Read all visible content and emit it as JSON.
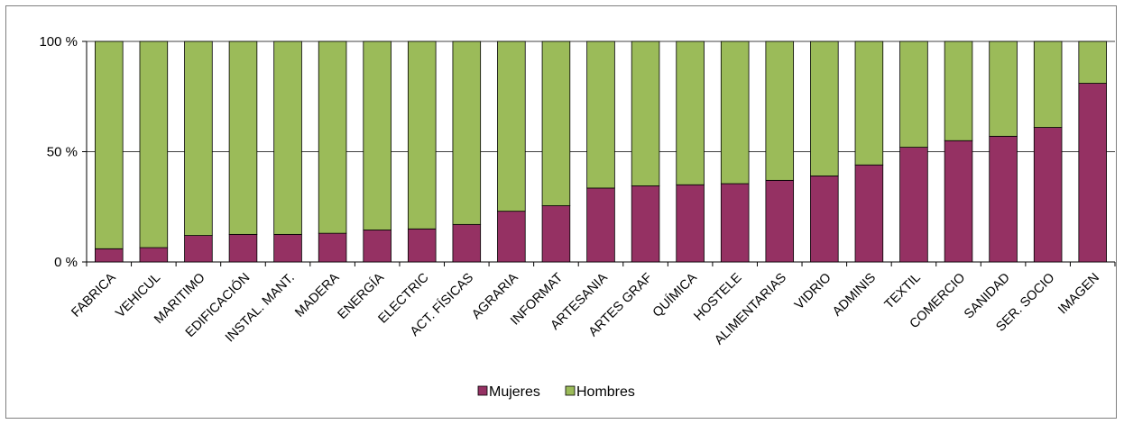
{
  "chart_data": {
    "type": "bar",
    "stacked": "percent",
    "categories": [
      "FABRICA",
      "VEHICUL",
      "MARITIMO",
      "EDIFICACIÓN",
      "INSTAL. MANT.",
      "MADERA",
      "ENERGÍA",
      "ELECTRIC",
      "ACT. FÍSICAS",
      "AGRARIA",
      "INFORMAT",
      "ARTESANIA",
      "ARTES GRAF",
      "QUÍMICA",
      "HOSTELE",
      "ALIMENTARIAS",
      "VIDRIO",
      "ADMINIS",
      "TEXTIL",
      "COMERCIO",
      "SANIDAD",
      "SER. SOCIO",
      "IMAGEN"
    ],
    "series": [
      {
        "name": "Mujeres",
        "color": "#953163",
        "values": [
          6,
          6.5,
          12,
          12.5,
          12.5,
          13,
          14.5,
          15,
          17,
          23,
          25.5,
          33.5,
          34.5,
          35,
          35.5,
          37,
          39,
          44,
          52,
          55,
          57,
          61,
          81
        ]
      },
      {
        "name": "Hombres",
        "color": "#9BBB59",
        "values": [
          94,
          93.5,
          88,
          87.5,
          87.5,
          87,
          85.5,
          85,
          83,
          77,
          74.5,
          66.5,
          65.5,
          65,
          64.5,
          63,
          61,
          56,
          48,
          45,
          43,
          39,
          19
        ]
      }
    ],
    "yticks": [
      "0 %",
      "50 %",
      "100 %"
    ],
    "ylim": [
      0,
      100
    ],
    "grid": true,
    "legend_position": "bottom"
  }
}
